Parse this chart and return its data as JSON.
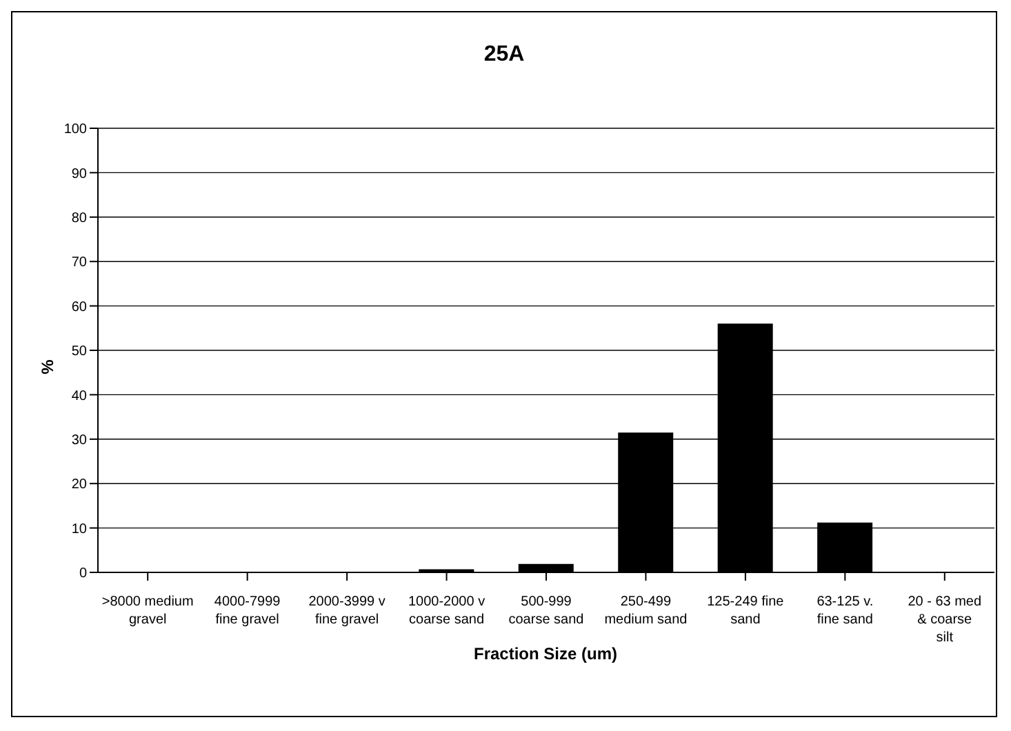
{
  "chart_data": {
    "type": "bar",
    "title": "25A",
    "xlabel": "Fraction Size (um)",
    "ylabel": "%",
    "categories": [
      ">8000 medium gravel",
      "4000-7999 fine gravel",
      "2000-3999 v fine gravel",
      "1000-2000 v coarse sand",
      "500-999 coarse sand",
      "250-499 medium sand",
      "125-249 fine sand",
      "63-125 v. fine sand",
      "20 - 63 med & coarse silt"
    ],
    "values": [
      0,
      0,
      0,
      0.7,
      1.9,
      31.5,
      56,
      11.2,
      0
    ],
    "color": "#000000",
    "ylim": [
      0,
      100
    ],
    "yticks": [
      0,
      10,
      20,
      30,
      40,
      50,
      60,
      70,
      80,
      90,
      100
    ],
    "grid": "y",
    "legend": false
  }
}
